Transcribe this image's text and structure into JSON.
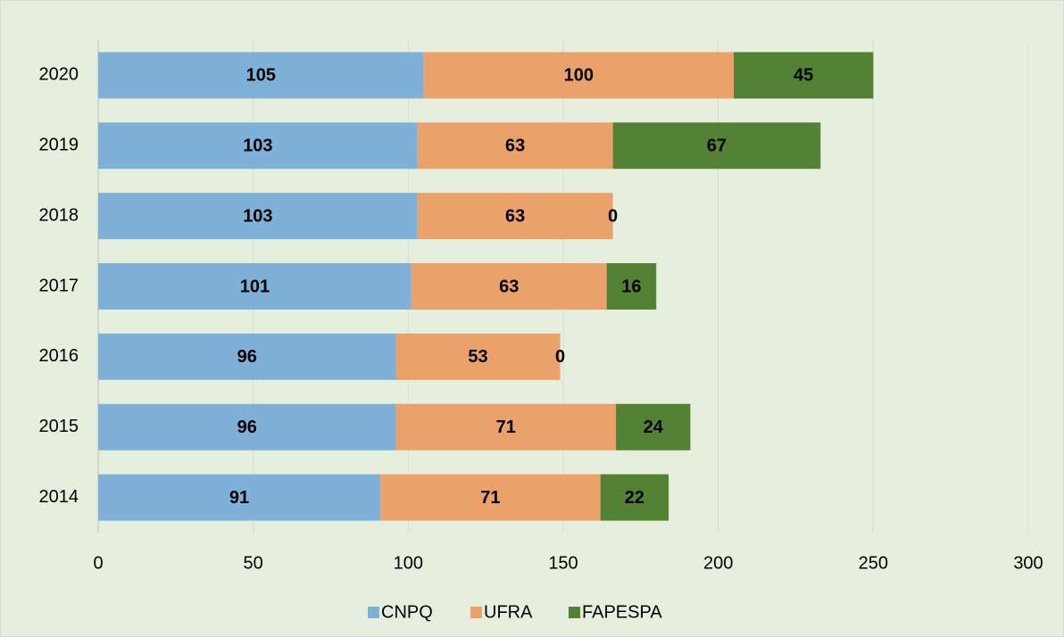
{
  "chart_data": {
    "type": "stacked-barh",
    "categories": [
      "2014",
      "2015",
      "2016",
      "2017",
      "2018",
      "2019",
      "2020"
    ],
    "series": [
      {
        "name": "CNPQ",
        "color": "#7fb0d8",
        "values": [
          91,
          96,
          96,
          101,
          103,
          103,
          105
        ]
      },
      {
        "name": "UFRA",
        "color": "#eba16a",
        "values": [
          71,
          71,
          53,
          63,
          63,
          63,
          100
        ]
      },
      {
        "name": "FAPESPA",
        "color": "#548235",
        "values": [
          22,
          24,
          0,
          16,
          0,
          67,
          45
        ]
      }
    ],
    "xlim": [
      0,
      300
    ],
    "xticks": [
      0,
      50,
      100,
      150,
      200,
      250,
      300
    ],
    "grid": true,
    "legend": "bottom"
  }
}
